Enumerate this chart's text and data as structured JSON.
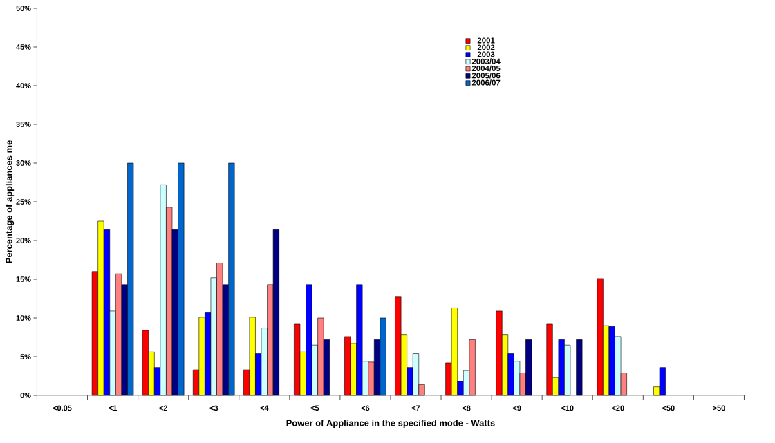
{
  "chart_data": {
    "type": "bar",
    "xlabel": "Power of Appliance in the specified mode - Watts",
    "ylabel": "Percentage of appliances me",
    "categories": [
      "<0.05",
      "<1",
      "<2",
      "<3",
      "<4",
      "<5",
      "<6",
      "<7",
      "<8",
      "<9",
      "<10",
      "<20",
      "<50",
      ">50"
    ],
    "series": [
      {
        "name": "2001",
        "color": "#ff0000",
        "values": [
          null,
          16,
          8.4,
          3.3,
          3.3,
          9.2,
          7.6,
          12.7,
          4.2,
          10.9,
          9.2,
          15.1,
          null,
          null
        ]
      },
      {
        "name": "2002",
        "color": "#ffff00",
        "values": [
          null,
          22.5,
          5.6,
          10.1,
          10.1,
          5.6,
          6.7,
          7.8,
          11.3,
          7.8,
          2.3,
          9.0,
          1.1,
          null
        ]
      },
      {
        "name": "2003",
        "color": "#0000ff",
        "values": [
          null,
          21.4,
          3.6,
          10.7,
          5.4,
          14.3,
          14.3,
          3.6,
          1.8,
          5.4,
          7.2,
          8.9,
          3.6,
          null
        ]
      },
      {
        "name": "2003/04",
        "color": "#ccffff",
        "values": [
          null,
          10.9,
          27.2,
          15.2,
          8.7,
          6.5,
          4.4,
          5.4,
          3.2,
          4.4,
          6.5,
          7.6,
          null,
          null
        ]
      },
      {
        "name": "2004/05",
        "color": "#ff8080",
        "values": [
          null,
          15.7,
          24.3,
          17.1,
          14.3,
          10,
          4.3,
          1.4,
          7.2,
          2.9,
          null,
          2.9,
          null,
          null
        ]
      },
      {
        "name": "2005/06",
        "color": "#000080",
        "values": [
          null,
          14.3,
          21.4,
          14.3,
          21.4,
          7.2,
          7.2,
          null,
          null,
          7.2,
          7.2,
          null,
          null,
          null
        ]
      },
      {
        "name": "2006/07",
        "color": "#0066cc",
        "values": [
          null,
          30,
          30,
          30,
          null,
          null,
          10,
          null,
          null,
          null,
          null,
          null,
          null,
          null
        ]
      }
    ],
    "ylim": [
      0,
      50
    ],
    "yticks": [
      {
        "value": 0,
        "label": "0%"
      },
      {
        "value": 5,
        "label": "5%"
      },
      {
        "value": 10,
        "label": "10%"
      },
      {
        "value": 15,
        "label": "15%"
      },
      {
        "value": 20,
        "label": "20%"
      },
      {
        "value": 25,
        "label": "25%"
      },
      {
        "value": 30,
        "label": "30%"
      },
      {
        "value": 35,
        "label": "35%"
      },
      {
        "value": 40,
        "label": "40%"
      },
      {
        "value": 45,
        "label": "45%"
      },
      {
        "value": 50,
        "label": "50%"
      }
    ],
    "legend": "top right",
    "grid": false
  }
}
